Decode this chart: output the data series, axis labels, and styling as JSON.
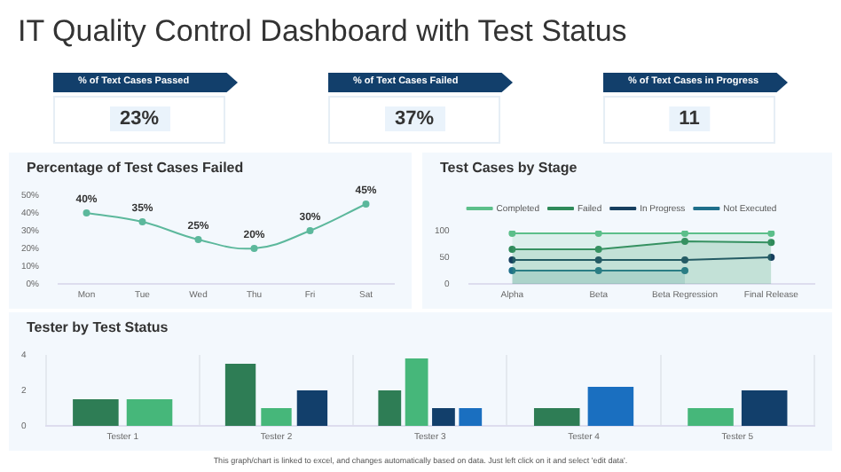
{
  "chart_data": [
    {
      "type": "other",
      "title": "IT Quality Control Dashboard with Test Status",
      "annotations": [
        "% of Text Cases Passed",
        "23%",
        "% of Text Cases Failed",
        "37%",
        "% of Text Cases in Progress",
        "11"
      ]
    },
    {
      "type": "line",
      "title": "Percentage of Test Cases Failed",
      "categories": [
        "Mon",
        "Tue",
        "Wed",
        "Thu",
        "Fri",
        "Sat"
      ],
      "series": [
        {
          "color": "#5cb89c",
          "values": [
            40,
            35,
            25,
            20,
            30,
            45
          ],
          "value_labels": [
            "40%",
            "35%",
            "25%",
            "20%",
            "30%",
            "45%"
          ]
        }
      ],
      "ylim": [
        0,
        50
      ],
      "yticks": [
        {
          "value": 0,
          "label": "0%"
        },
        {
          "value": 10,
          "label": "10%"
        },
        {
          "value": 20,
          "label": "20%"
        },
        {
          "value": 30,
          "label": "30%"
        },
        {
          "value": 40,
          "label": "40%"
        },
        {
          "value": 50,
          "label": "50%"
        }
      ],
      "marker": "circle",
      "legend": false
    },
    {
      "type": "line",
      "title": "Test Cases by Stage",
      "categories": [
        "Alpha",
        "Beta",
        "Beta Regression",
        "Final Release"
      ],
      "series": [
        {
          "name": "Completed",
          "type": "area",
          "color": "#5cbf8a",
          "values": [
            95,
            95,
            95,
            95
          ]
        },
        {
          "name": "Failed",
          "type": "area",
          "color": "#2f8a5a",
          "values": [
            65,
            65,
            80,
            78
          ]
        },
        {
          "name": "In Progress",
          "type": "line",
          "color": "#173f5f",
          "values": [
            45,
            45,
            45,
            50
          ]
        },
        {
          "name": "Not Executed",
          "type": "area",
          "color": "#1f6f8b",
          "values": [
            25,
            25,
            25,
            null
          ]
        }
      ],
      "ylim": [
        0,
        100
      ],
      "yticks": [
        0,
        50,
        100
      ],
      "marker": "circle",
      "legend": "top"
    },
    {
      "type": "bar",
      "title": "Tester by Test Status",
      "categories": [
        "Tester 1",
        "Tester 2",
        "Tester 3",
        "Tester 4",
        "Tester 5"
      ],
      "series": [
        {
          "color": "#2e7d55",
          "values": [
            1.5,
            3.5,
            2,
            1,
            null
          ]
        },
        {
          "color": "#46b77a",
          "values": [
            1.5,
            1,
            3.8,
            null,
            1
          ]
        },
        {
          "color": "#123f6b",
          "values": [
            null,
            2,
            1,
            null,
            2
          ]
        },
        {
          "color": "#1a6fc0",
          "values": [
            null,
            null,
            1,
            2.2,
            null
          ]
        }
      ],
      "ylim": [
        0,
        4
      ],
      "yticks": [
        0,
        2,
        4
      ],
      "grid": "x",
      "legend": false,
      "annotations": [
        "This graph/chart is linked to excel, and changes automatically based on data. Just left click on it and select 'edit data'."
      ]
    }
  ]
}
